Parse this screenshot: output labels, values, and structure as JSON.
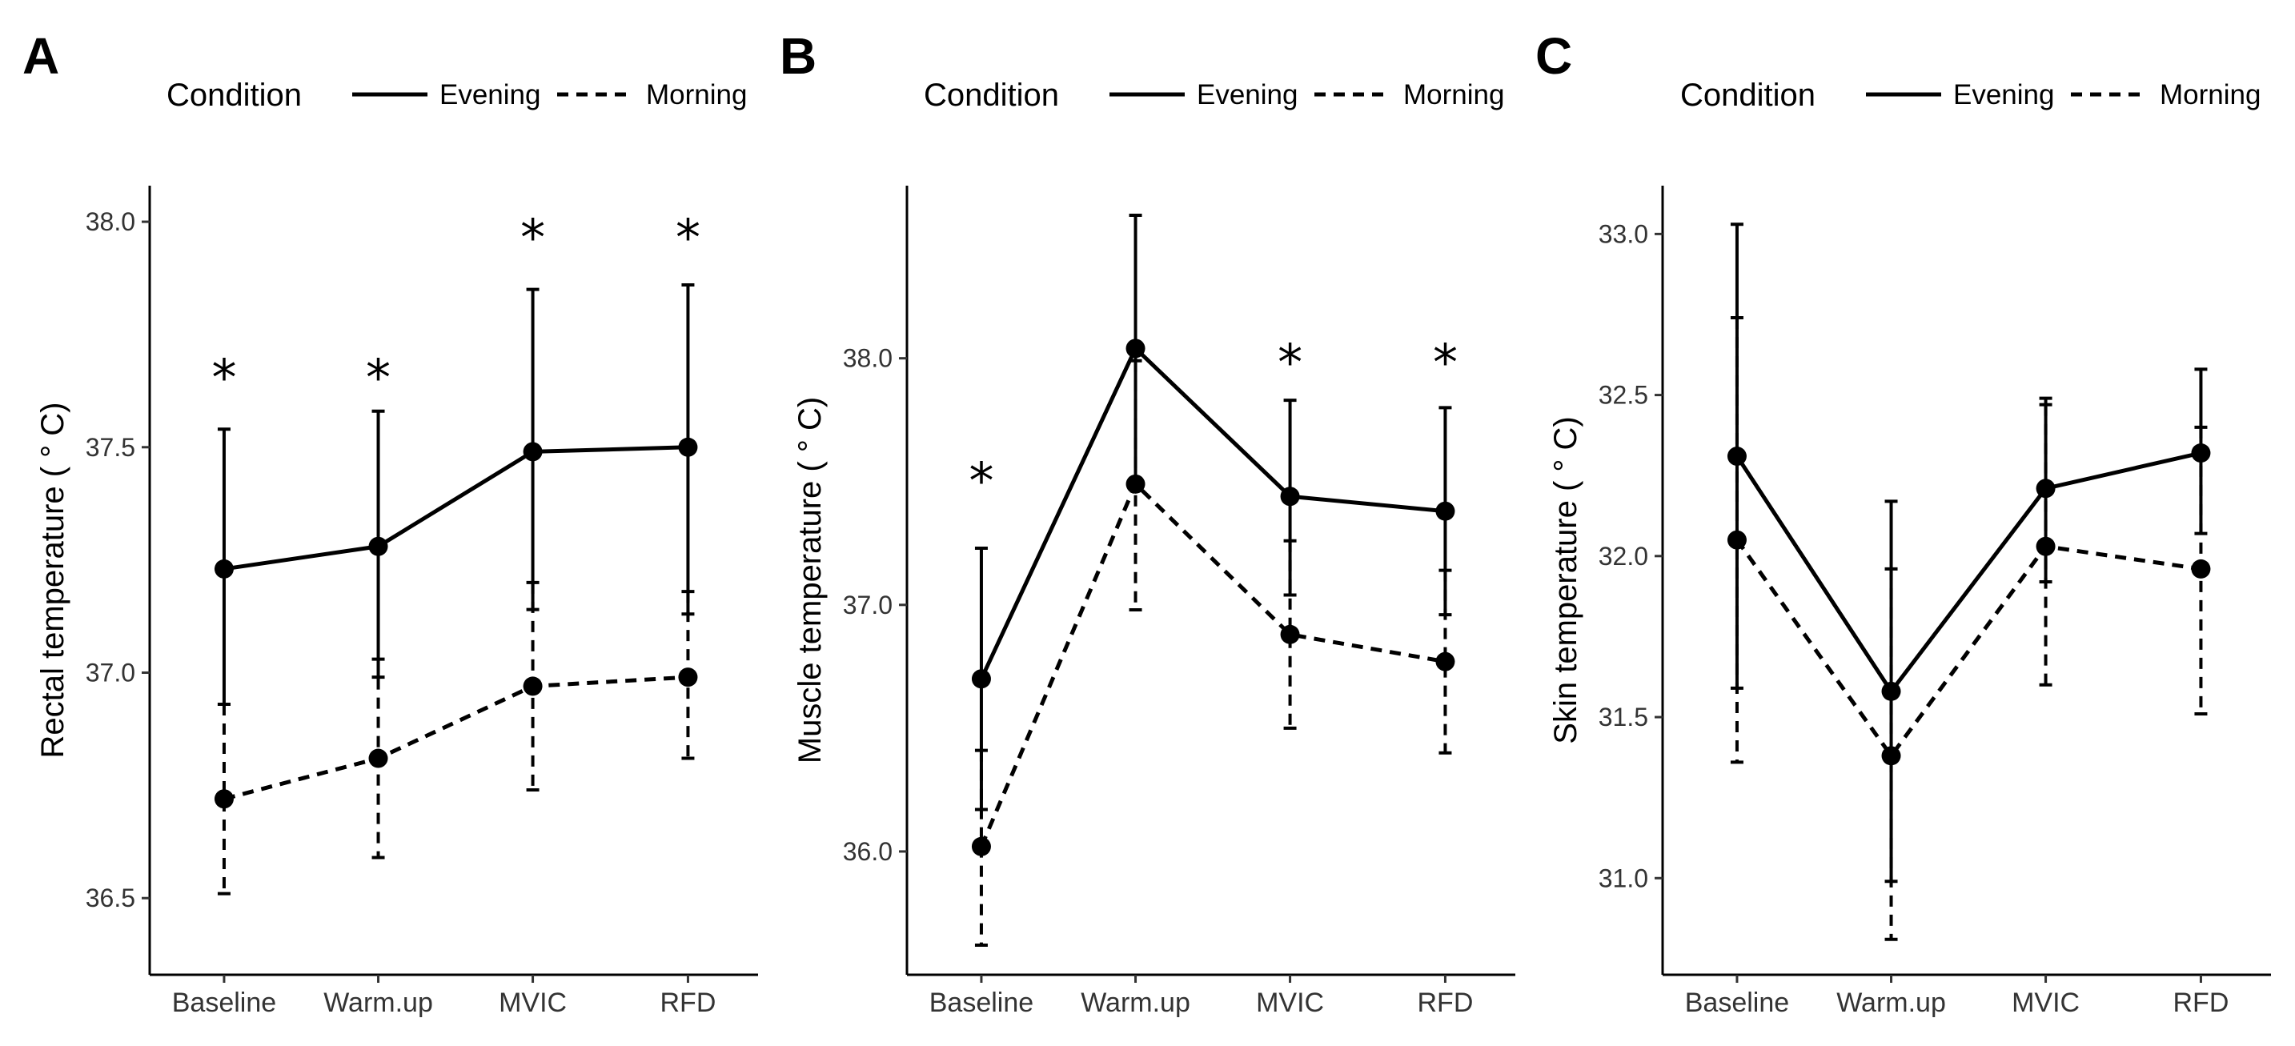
{
  "chart_data": [
    {
      "type": "line",
      "panel": "A",
      "legend": {
        "title": "Condition",
        "entries": [
          "Evening",
          "Morning"
        ],
        "position": "top"
      },
      "categories": [
        "Baseline",
        "Warm.up",
        "MVIC",
        "RFD"
      ],
      "ylabel": "Rectal temperature ( ° C)",
      "ylim": [
        36.33,
        38.08
      ],
      "yticks": [
        "36.5",
        "37.0",
        "37.5",
        "38.0"
      ],
      "significance": [
        "*",
        "*",
        "*",
        "*"
      ],
      "significance_at": [
        37.68,
        37.68,
        37.99,
        37.99
      ],
      "series": [
        {
          "name": "Evening",
          "values": [
            37.23,
            37.28,
            37.49,
            37.5
          ],
          "upper": [
            37.54,
            37.58,
            37.85,
            37.86
          ],
          "lower": [
            36.93,
            36.99,
            37.14,
            37.13
          ]
        },
        {
          "name": "Morning",
          "values": [
            36.72,
            36.81,
            36.97,
            36.99
          ],
          "upper": [
            36.93,
            37.03,
            37.2,
            37.18
          ],
          "lower": [
            36.51,
            36.59,
            36.74,
            36.81
          ]
        }
      ]
    },
    {
      "type": "line",
      "panel": "B",
      "legend": {
        "title": "Condition",
        "entries": [
          "Evening",
          "Morning"
        ],
        "position": "top"
      },
      "categories": [
        "Baseline",
        "Warm.up",
        "MVIC",
        "RFD"
      ],
      "ylabel": "Muscle temperature ( ° C)",
      "ylim": [
        35.5,
        38.7
      ],
      "yticks": [
        "36.0",
        "37.0",
        "38.0"
      ],
      "significance": [
        "*",
        "",
        "*",
        "*"
      ],
      "significance_at": [
        37.55,
        null,
        38.03,
        38.03
      ],
      "series": [
        {
          "name": "Evening",
          "values": [
            36.7,
            38.04,
            37.44,
            37.38
          ],
          "upper": [
            37.23,
            38.58,
            37.83,
            37.8
          ],
          "lower": [
            36.17,
            37.51,
            37.04,
            36.96
          ]
        },
        {
          "name": "Morning",
          "values": [
            36.02,
            37.49,
            36.88,
            36.77
          ],
          "upper": [
            36.41,
            37.99,
            37.26,
            37.14
          ],
          "lower": [
            35.62,
            36.98,
            36.5,
            36.4
          ]
        }
      ]
    },
    {
      "type": "line",
      "panel": "C",
      "legend": {
        "title": "Condition",
        "entries": [
          "Evening",
          "Morning"
        ],
        "position": "top"
      },
      "categories": [
        "Baseline",
        "Warm.up",
        "MVIC",
        "RFD"
      ],
      "ylabel": "Skin temperature ( ° C)",
      "ylim": [
        30.7,
        33.15
      ],
      "yticks": [
        "31.0",
        "31.5",
        "32.0",
        "32.5",
        "33.0"
      ],
      "significance": [
        "",
        "",
        "",
        ""
      ],
      "significance_at": [
        null,
        null,
        null,
        null
      ],
      "series": [
        {
          "name": "Evening",
          "values": [
            32.31,
            31.58,
            32.21,
            32.32
          ],
          "upper": [
            33.03,
            32.17,
            32.49,
            32.58
          ],
          "lower": [
            31.59,
            30.99,
            31.92,
            32.07
          ]
        },
        {
          "name": "Morning",
          "values": [
            32.05,
            31.38,
            32.03,
            31.96
          ],
          "upper": [
            32.74,
            31.96,
            32.47,
            32.4
          ],
          "lower": [
            31.36,
            30.81,
            31.6,
            31.51
          ]
        }
      ]
    }
  ]
}
